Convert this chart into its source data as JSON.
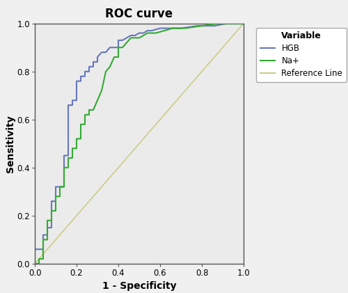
{
  "title": "ROC curve",
  "xlabel": "1 - Specificity",
  "ylabel": "Sensitivity",
  "hgb_color": "#6677bb",
  "na_color": "#33aa33",
  "ref_color": "#cccc88",
  "legend_title": "Variable",
  "legend_labels": [
    "HGB",
    "Na+",
    "Reference Line"
  ],
  "background_color": "#e8e8e8",
  "plot_bg_color": "#ebebeb",
  "xlim": [
    0.0,
    1.0
  ],
  "ylim": [
    0.0,
    1.0
  ],
  "xticks": [
    0.0,
    0.2,
    0.4,
    0.6,
    0.8,
    1.0
  ],
  "yticks": [
    0.0,
    0.2,
    0.4,
    0.6,
    0.8,
    1.0
  ],
  "hgb_fpr": [
    0.0,
    0.0,
    0.04,
    0.04,
    0.06,
    0.06,
    0.08,
    0.08,
    0.1,
    0.1,
    0.14,
    0.14,
    0.16,
    0.16,
    0.18,
    0.18,
    0.2,
    0.2,
    0.22,
    0.22,
    0.24,
    0.24,
    0.26,
    0.26,
    0.28,
    0.28,
    0.3,
    0.3,
    0.32,
    0.34,
    0.36,
    0.38,
    0.4,
    0.4,
    0.42,
    0.44,
    0.46,
    0.48,
    0.5,
    0.52,
    0.54,
    0.56,
    0.6,
    0.65,
    0.7,
    0.78,
    0.86,
    0.92,
    1.0
  ],
  "hgb_tpr": [
    0.0,
    0.06,
    0.06,
    0.12,
    0.12,
    0.15,
    0.15,
    0.26,
    0.26,
    0.32,
    0.32,
    0.45,
    0.45,
    0.66,
    0.66,
    0.68,
    0.68,
    0.76,
    0.76,
    0.78,
    0.78,
    0.8,
    0.8,
    0.82,
    0.82,
    0.84,
    0.84,
    0.86,
    0.88,
    0.88,
    0.9,
    0.9,
    0.9,
    0.93,
    0.93,
    0.94,
    0.95,
    0.95,
    0.96,
    0.96,
    0.97,
    0.97,
    0.98,
    0.98,
    0.98,
    0.99,
    0.99,
    1.0,
    1.0
  ],
  "na_fpr": [
    0.0,
    0.02,
    0.02,
    0.04,
    0.04,
    0.06,
    0.06,
    0.08,
    0.08,
    0.1,
    0.1,
    0.12,
    0.12,
    0.14,
    0.14,
    0.16,
    0.16,
    0.18,
    0.18,
    0.2,
    0.2,
    0.22,
    0.22,
    0.24,
    0.24,
    0.26,
    0.26,
    0.28,
    0.3,
    0.32,
    0.34,
    0.36,
    0.38,
    0.4,
    0.4,
    0.42,
    0.44,
    0.46,
    0.5,
    0.54,
    0.58,
    0.62,
    0.66,
    0.72,
    0.8,
    0.88,
    0.94,
    1.0
  ],
  "na_tpr": [
    0.0,
    0.0,
    0.02,
    0.02,
    0.1,
    0.1,
    0.18,
    0.18,
    0.22,
    0.22,
    0.28,
    0.28,
    0.32,
    0.32,
    0.4,
    0.4,
    0.44,
    0.44,
    0.48,
    0.48,
    0.52,
    0.52,
    0.58,
    0.58,
    0.62,
    0.62,
    0.64,
    0.64,
    0.68,
    0.72,
    0.8,
    0.82,
    0.86,
    0.86,
    0.9,
    0.9,
    0.92,
    0.94,
    0.94,
    0.96,
    0.96,
    0.97,
    0.98,
    0.98,
    0.99,
    1.0,
    1.0,
    1.0
  ]
}
